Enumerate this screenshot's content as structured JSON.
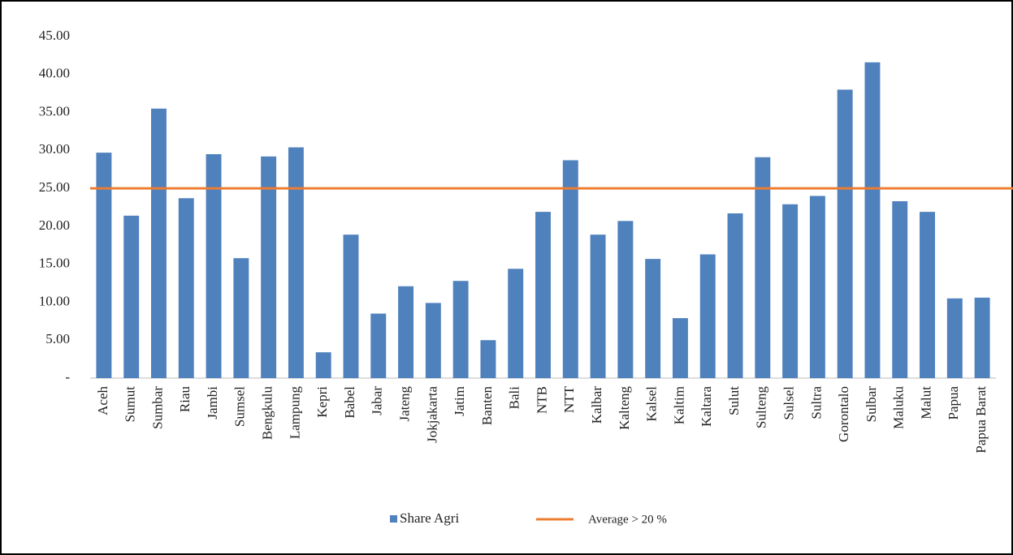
{
  "chart_data": {
    "type": "bar",
    "categories": [
      "Aceh",
      "Sumut",
      "Sumbar",
      "Riau",
      "Jambi",
      "Sumsel",
      "Bengkulu",
      "Lampung",
      "Kepri",
      "Babel",
      "Jabar",
      "Jateng",
      "Jokjakarta",
      "Jatim",
      "Banten",
      "Bali",
      "NTB",
      "NTT",
      "Kalbar",
      "Kalteng",
      "Kalsel",
      "Kaltim",
      "Kaltara",
      "Sulut",
      "Sulteng",
      "Sulsel",
      "Sultra",
      "Gorontalo",
      "Sulbar",
      "Maluku",
      "Malut",
      "Papua",
      "Papua Barat"
    ],
    "series": [
      {
        "name": "Share Agri",
        "color": "#4f81bd",
        "values": [
          29.7,
          21.4,
          35.5,
          23.7,
          29.5,
          15.8,
          29.2,
          30.4,
          3.4,
          18.9,
          8.5,
          12.1,
          9.9,
          12.8,
          5.0,
          14.4,
          21.9,
          28.7,
          18.9,
          20.7,
          15.7,
          7.9,
          16.3,
          21.7,
          29.1,
          22.9,
          24.0,
          38.0,
          41.6,
          23.3,
          21.9,
          10.5,
          10.6
        ]
      }
    ],
    "average_line": {
      "name": "Average > 20 %",
      "value": 25,
      "color": "#ed7d31"
    },
    "ylim": [
      0,
      45
    ],
    "yticks": [
      {
        "value": 0,
        "label": "-"
      },
      {
        "value": 5,
        "label": "5.00"
      },
      {
        "value": 10,
        "label": "10.00"
      },
      {
        "value": 15,
        "label": "15.00"
      },
      {
        "value": 20,
        "label": "20.00"
      },
      {
        "value": 25,
        "label": "25.00"
      },
      {
        "value": 30,
        "label": "30.00"
      },
      {
        "value": 35,
        "label": "35.00"
      },
      {
        "value": 40,
        "label": "40.00"
      },
      {
        "value": 45,
        "label": "45.00"
      }
    ],
    "grid": false
  }
}
